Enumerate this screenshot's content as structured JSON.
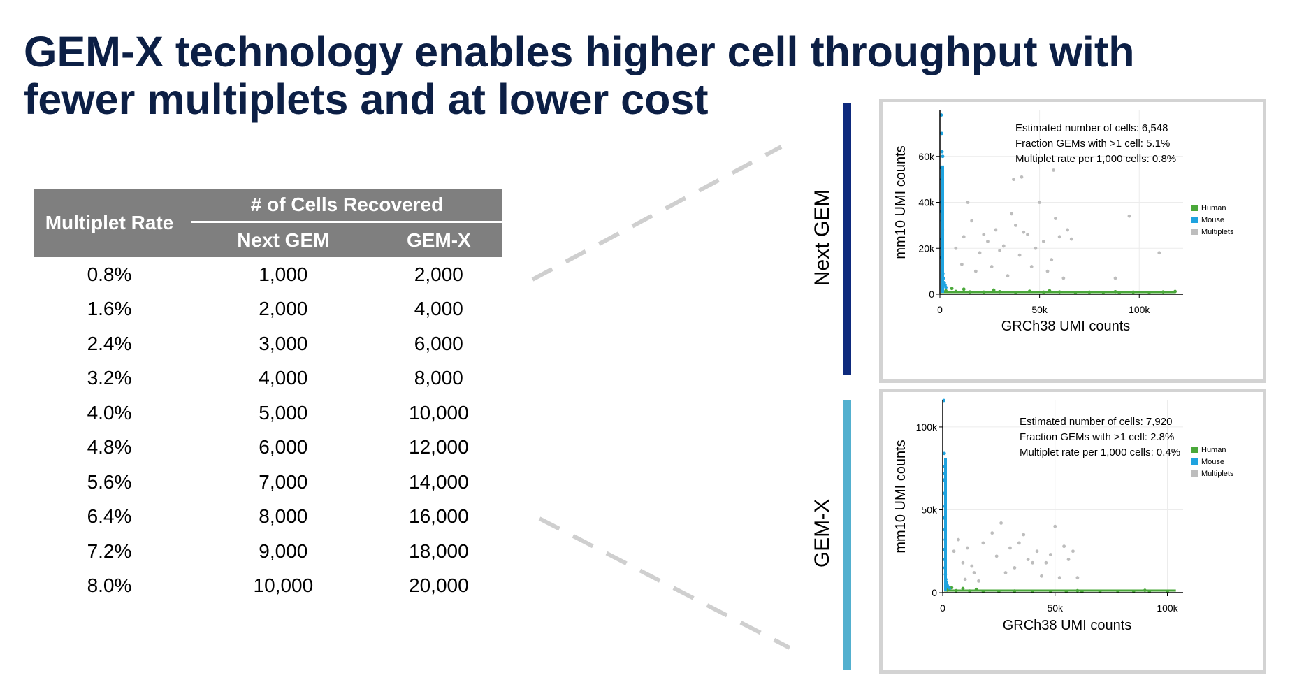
{
  "title": {
    "line1": "GEM-X technology enables higher cell throughput with",
    "line2": "fewer multiplets and at lower cost"
  },
  "table": {
    "header_multiplet": "Multiplet Rate",
    "header_group": "# of Cells Recovered",
    "header_nextgem": "Next GEM",
    "header_gemx": "GEM-X",
    "rows": [
      [
        "0.8%",
        "1,000",
        "2,000"
      ],
      [
        "1.6%",
        "2,000",
        "4,000"
      ],
      [
        "2.4%",
        "3,000",
        "6,000"
      ],
      [
        "3.2%",
        "4,000",
        "8,000"
      ],
      [
        "4.0%",
        "5,000",
        "10,000"
      ],
      [
        "4.8%",
        "6,000",
        "12,000"
      ],
      [
        "5.6%",
        "7,000",
        "14,000"
      ],
      [
        "6.4%",
        "8,000",
        "16,000"
      ],
      [
        "7.2%",
        "9,000",
        "18,000"
      ],
      [
        "8.0%",
        "10,000",
        "20,000"
      ]
    ]
  },
  "labels": {
    "nextgem": "Next GEM",
    "gemx": "GEM-X"
  },
  "colors": {
    "human": "#4aa83a",
    "mouse": "#1fa3df",
    "multiplets": "#bdbdbd",
    "title": "#0c1f45",
    "header": "#7f7f7f",
    "nextgem_bar": "#0e2a7d",
    "gemx_bar": "#53b0cf"
  },
  "chart_data": [
    {
      "type": "scatter",
      "name": "Next GEM",
      "xlabel": "GRCh38 UMI counts",
      "ylabel": "mm10 UMI counts",
      "xlim": [
        0,
        122000
      ],
      "ylim": [
        0,
        80000
      ],
      "xticks": [
        0,
        50000,
        100000
      ],
      "xtick_labels": [
        "0",
        "50k",
        "100k"
      ],
      "yticks": [
        0,
        20000,
        40000,
        60000
      ],
      "ytick_labels": [
        "0",
        "20k",
        "40k",
        "60k"
      ],
      "grid": true,
      "legend_position": "right",
      "legend": [
        "Human",
        "Mouse",
        "Multiplets"
      ],
      "annotations": [
        "Estimated number of cells:   6,548",
        "Fraction GEMs with >1 cell:   5.1%",
        "Multiplet rate per 1,000 cells: 0.8%"
      ],
      "series": [
        {
          "name": "Human",
          "x": [
            3000,
            8000,
            15000,
            22000,
            30000,
            38000,
            45000,
            52000,
            60000,
            68000,
            75000,
            82000,
            90000,
            97000,
            105000,
            112000,
            118000,
            6000,
            12000,
            27000,
            55000,
            88000
          ],
          "y": [
            1500,
            1200,
            1000,
            900,
            1100,
            800,
            1300,
            900,
            1000,
            700,
            900,
            800,
            700,
            900,
            800,
            1000,
            1200,
            2500,
            2200,
            1800,
            1500,
            1100
          ]
        },
        {
          "name": "Mouse",
          "x": [
            700,
            900,
            1100,
            800,
            1000,
            1200,
            900,
            700,
            1100,
            1300,
            800,
            1000,
            900,
            1200,
            1500,
            1800,
            2200,
            2600,
            3000,
            1400
          ],
          "y": [
            78000,
            70000,
            62000,
            55000,
            50000,
            45000,
            40000,
            36000,
            32000,
            28000,
            24000,
            20000,
            16000,
            12000,
            9000,
            7000,
            5000,
            4000,
            3000,
            60000
          ]
        },
        {
          "name": "Multiplets",
          "x": [
            8000,
            12000,
            16000,
            20000,
            24000,
            28000,
            32000,
            36000,
            40000,
            44000,
            48000,
            52000,
            56000,
            60000,
            64000,
            11000,
            18000,
            26000,
            34000,
            38000,
            42000,
            50000,
            58000,
            66000,
            14000,
            22000,
            30000,
            46000,
            54000,
            62000,
            88000,
            95000,
            110000,
            37000,
            41000,
            57000
          ],
          "y": [
            20000,
            25000,
            32000,
            18000,
            23000,
            28000,
            21000,
            35000,
            17000,
            26000,
            20000,
            23000,
            15000,
            25000,
            28000,
            13000,
            10000,
            12000,
            8000,
            30000,
            27000,
            40000,
            33000,
            24000,
            40000,
            26000,
            19000,
            12000,
            10000,
            7000,
            7000,
            34000,
            18000,
            50000,
            51000,
            54000
          ]
        }
      ]
    },
    {
      "type": "scatter",
      "name": "GEM-X",
      "xlabel": "GRCh38 UMI counts",
      "ylabel": "mm10 UMI counts",
      "xlim": [
        0,
        107000
      ],
      "ylim": [
        0,
        116000
      ],
      "xticks": [
        0,
        50000,
        100000
      ],
      "xtick_labels": [
        "0",
        "50k",
        "100k"
      ],
      "yticks": [
        0,
        50000,
        100000
      ],
      "ytick_labels": [
        "0",
        "50k",
        "100k"
      ],
      "grid": true,
      "legend_position": "right",
      "legend": [
        "Human",
        "Mouse",
        "Multiplets"
      ],
      "annotations": [
        "Estimated number of cells:    7,920",
        "Fraction GEMs with >1 cell:   2.8%",
        "Multiplet rate per 1,000 cells: 0.4%"
      ],
      "series": [
        {
          "name": "Human",
          "x": [
            2000,
            6000,
            12000,
            18000,
            25000,
            32000,
            40000,
            48000,
            55000,
            62000,
            70000,
            78000,
            85000,
            92000,
            100000,
            4000,
            9000,
            15000,
            60000,
            90000
          ],
          "y": [
            1500,
            1200,
            1000,
            900,
            800,
            1000,
            700,
            900,
            800,
            700,
            800,
            700,
            900,
            800,
            700,
            3000,
            2500,
            2000,
            1200,
            1400
          ]
        },
        {
          "name": "Mouse",
          "x": [
            500,
            700,
            900,
            600,
            800,
            1000,
            700,
            900,
            1100,
            600,
            800,
            1000,
            1200,
            1400,
            1700,
            2000,
            2400,
            3000,
            800
          ],
          "y": [
            116000,
            84000,
            76000,
            68000,
            60000,
            52000,
            45000,
            38000,
            32000,
            26000,
            20000,
            15000,
            11000,
            8000,
            6000,
            4500,
            3500,
            2500,
            72000
          ]
        },
        {
          "name": "Multiplets",
          "x": [
            5000,
            7000,
            9000,
            11000,
            14000,
            18000,
            22000,
            26000,
            30000,
            34000,
            38000,
            42000,
            46000,
            50000,
            54000,
            58000,
            28000,
            36000,
            44000,
            48000,
            10000,
            13000,
            24000,
            32000,
            52000,
            56000,
            60000,
            16000,
            40000
          ],
          "y": [
            25000,
            32000,
            18000,
            27000,
            12000,
            30000,
            36000,
            42000,
            27000,
            30000,
            20000,
            25000,
            18000,
            40000,
            28000,
            25000,
            12000,
            35000,
            10000,
            23000,
            8000,
            16000,
            22000,
            15000,
            9000,
            20000,
            9000,
            7000,
            18000
          ]
        }
      ]
    }
  ]
}
